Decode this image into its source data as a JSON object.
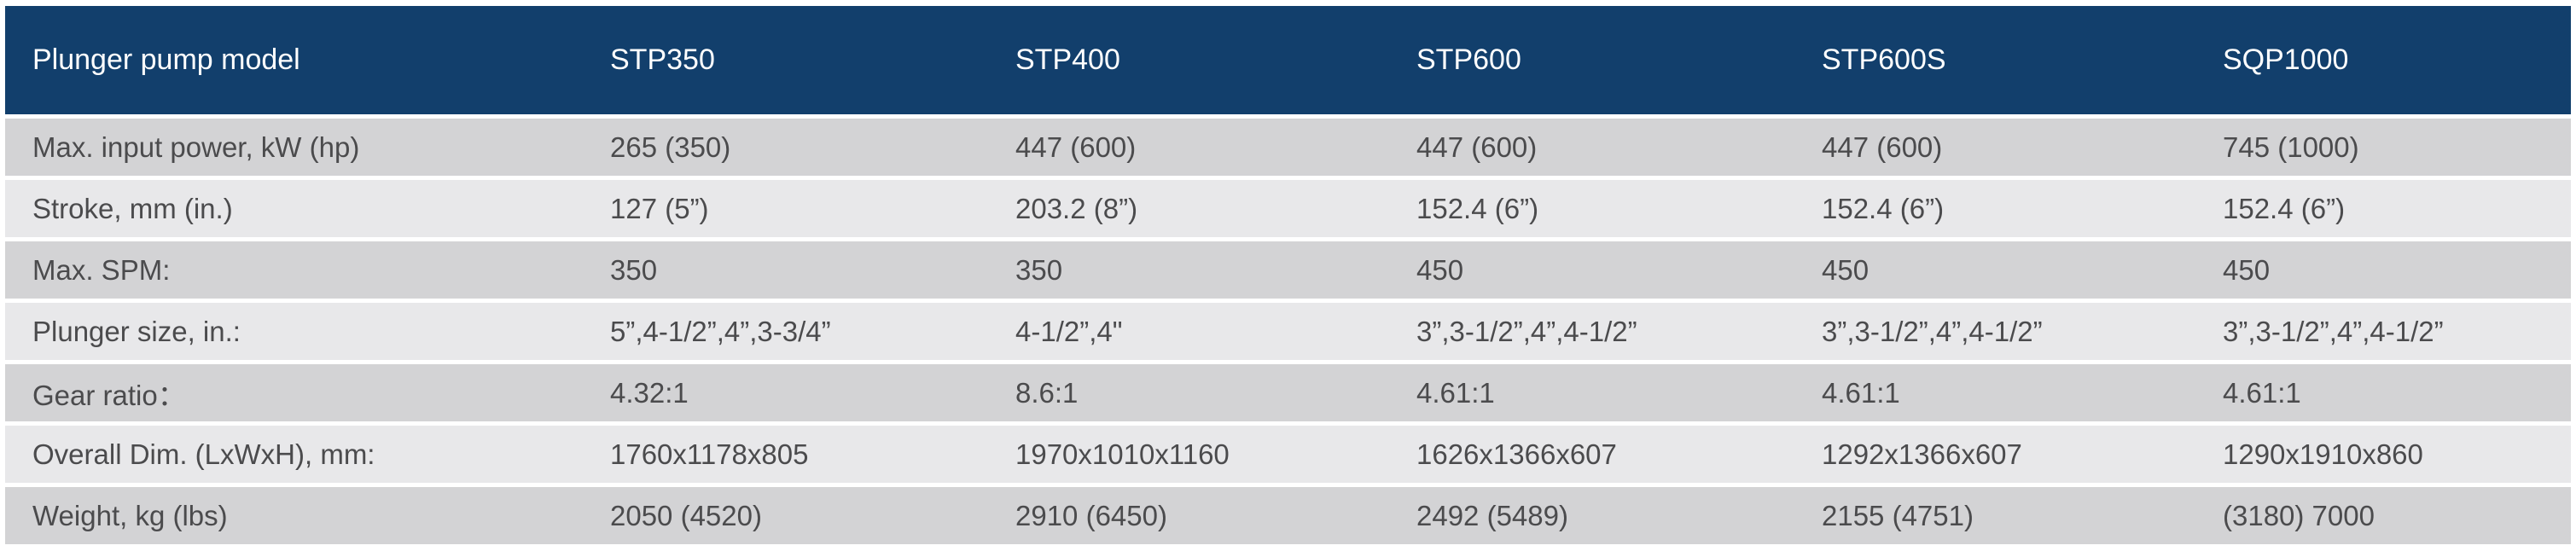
{
  "colors": {
    "header_bg": "#123f6c",
    "header_text": "#ffffff",
    "row_odd_bg": "#d3d3d5",
    "row_even_bg": "#e8e8ea",
    "cell_text": "#4b4b4d",
    "page_bg": "#ffffff"
  },
  "chart_data": {
    "type": "table",
    "columns": [
      "Plunger pump model",
      "STP350",
      "STP400",
      "STP600",
      "STP600S",
      "SQP1000"
    ],
    "rows": [
      {
        "label": "Max. input power, kW (hp)",
        "values": [
          "265 (350)",
          "447 (600)",
          "447 (600)",
          "447 (600)",
          "745 (1000)"
        ]
      },
      {
        "label": "Stroke, mm (in.)",
        "values": [
          "127 (5”)",
          "203.2 (8”)",
          "152.4 (6”)",
          "152.4 (6”)",
          "152.4 (6”)"
        ]
      },
      {
        "label": "Max. SPM:",
        "values": [
          "350",
          "350",
          "450",
          "450",
          "450"
        ]
      },
      {
        "label": "Plunger size, in.:",
        "values": [
          "5”,4-1/2”,4”,3-3/4”",
          "4-1/2”,4\"",
          "3”,3-1/2”,4”,4-1/2”",
          "3”,3-1/2”,4”,4-1/2”",
          "3”,3-1/2”,4”,4-1/2”"
        ]
      },
      {
        "label": "Gear ratio：",
        "values": [
          "4.32:1",
          "8.6:1",
          "4.61:1",
          "4.61:1",
          "4.61:1"
        ]
      },
      {
        "label": "Overall Dim. (LxWxH), mm:",
        "values": [
          "1760x1178x805",
          "1970x1010x1160",
          "1626x1366x607",
          "1292x1366x607",
          "1290x1910x860"
        ]
      },
      {
        "label": "Weight, kg (lbs)",
        "values": [
          "2050 (4520)",
          "2910 (6450)",
          "2492 (5489)",
          "2155 (4751)",
          "(3180) 7000"
        ]
      }
    ]
  }
}
